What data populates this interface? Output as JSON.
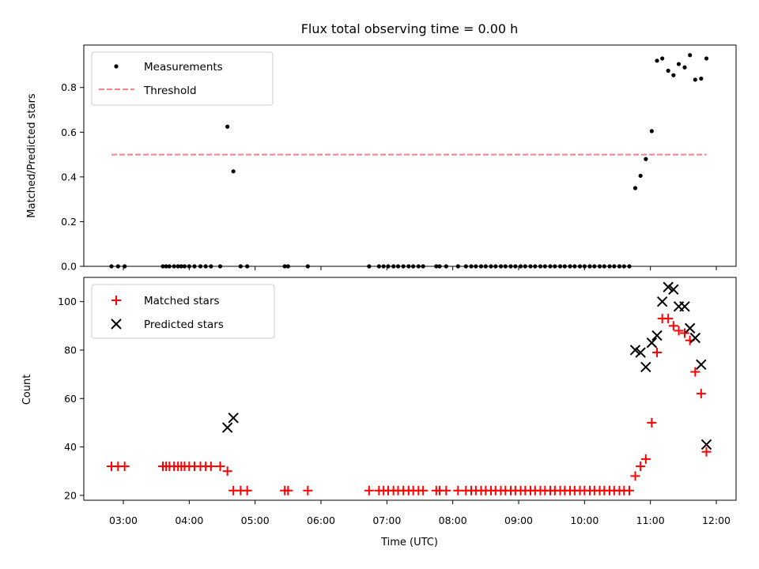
{
  "chart_data": [
    {
      "type": "scatter",
      "title": "Flux total observing time = 0.00 h",
      "xlabel": "",
      "ylabel": "Matched/Predicted stars",
      "xlim": [
        2.4,
        12.3
      ],
      "ylim": [
        0.0,
        0.99
      ],
      "yticks": [
        0.0,
        0.2,
        0.4,
        0.6,
        0.8
      ],
      "ytick_labels": [
        "0.0",
        "0.2",
        "0.4",
        "0.6",
        "0.8"
      ],
      "legend_position": "top-left",
      "series": [
        {
          "name": "Measurements",
          "kind": "points",
          "color": "#000000",
          "x": [
            2.82,
            2.92,
            3.02,
            3.6,
            3.65,
            3.7,
            3.77,
            3.83,
            3.88,
            3.93,
            4.0,
            4.08,
            4.17,
            4.25,
            4.33,
            4.47,
            4.58,
            4.67,
            4.78,
            4.88,
            5.45,
            5.5,
            5.8,
            6.73,
            6.88,
            6.95,
            7.02,
            7.1,
            7.17,
            7.25,
            7.33,
            7.4,
            7.48,
            7.55,
            7.75,
            7.8,
            7.9,
            8.08,
            8.2,
            8.28,
            8.35,
            8.43,
            8.5,
            8.58,
            8.65,
            8.73,
            8.8,
            8.88,
            8.95,
            9.03,
            9.1,
            9.18,
            9.25,
            9.33,
            9.4,
            9.48,
            9.55,
            9.63,
            9.7,
            9.78,
            9.85,
            9.93,
            10.0,
            10.08,
            10.15,
            10.23,
            10.3,
            10.38,
            10.45,
            10.53,
            10.6,
            10.68,
            10.77,
            10.85,
            10.93,
            11.02,
            11.1,
            11.18,
            11.27,
            11.35,
            11.43,
            11.52,
            11.6,
            11.68,
            11.77,
            11.85
          ],
          "y": [
            0,
            0,
            0,
            0,
            0,
            0,
            0,
            0,
            0,
            0,
            0,
            0,
            0,
            0,
            0,
            0,
            0.625,
            0.425,
            0,
            0,
            0,
            0,
            0,
            0,
            0,
            0,
            0,
            0,
            0,
            0,
            0,
            0,
            0,
            0,
            0,
            0,
            0,
            0,
            0,
            0,
            0,
            0,
            0,
            0,
            0,
            0,
            0,
            0,
            0,
            0,
            0,
            0,
            0,
            0,
            0,
            0,
            0,
            0,
            0,
            0,
            0,
            0,
            0,
            0,
            0,
            0,
            0,
            0,
            0,
            0,
            0,
            0,
            0.35,
            0.405,
            0.48,
            0.605,
            0.92,
            0.93,
            0.875,
            0.855,
            0.905,
            0.89,
            0.945,
            0.835,
            0.84,
            0.93
          ]
        },
        {
          "name": "Threshold",
          "kind": "dashed-line",
          "color": "#ff7f7f",
          "x": [
            2.82,
            11.85
          ],
          "y": [
            0.5,
            0.5
          ]
        }
      ]
    },
    {
      "type": "scatter",
      "title": "",
      "xlabel": "Time (UTC)",
      "ylabel": "Count",
      "xlim": [
        2.4,
        12.3
      ],
      "ylim": [
        18,
        110
      ],
      "yticks": [
        20,
        40,
        60,
        80,
        100
      ],
      "ytick_labels": [
        "20",
        "40",
        "60",
        "80",
        "100"
      ],
      "xticks": [
        3,
        4,
        5,
        6,
        7,
        8,
        9,
        10,
        11,
        12
      ],
      "xtick_labels": [
        "03:00",
        "04:00",
        "05:00",
        "06:00",
        "07:00",
        "08:00",
        "09:00",
        "10:00",
        "11:00",
        "12:00"
      ],
      "legend_position": "top-left",
      "series": [
        {
          "name": "Matched stars",
          "marker": "plus",
          "color": "#ff0000",
          "x": [
            2.82,
            2.92,
            3.02,
            3.6,
            3.65,
            3.7,
            3.77,
            3.83,
            3.88,
            3.93,
            4.0,
            4.08,
            4.17,
            4.25,
            4.33,
            4.47,
            4.58,
            4.67,
            4.78,
            4.88,
            5.45,
            5.5,
            5.8,
            6.73,
            6.88,
            6.95,
            7.02,
            7.1,
            7.17,
            7.25,
            7.33,
            7.4,
            7.48,
            7.55,
            7.75,
            7.8,
            7.9,
            8.08,
            8.2,
            8.28,
            8.35,
            8.43,
            8.5,
            8.58,
            8.65,
            8.73,
            8.8,
            8.88,
            8.95,
            9.03,
            9.1,
            9.18,
            9.25,
            9.33,
            9.4,
            9.48,
            9.55,
            9.63,
            9.7,
            9.78,
            9.85,
            9.93,
            10.0,
            10.08,
            10.15,
            10.23,
            10.3,
            10.38,
            10.45,
            10.53,
            10.6,
            10.68,
            10.77,
            10.85,
            10.93,
            11.02,
            11.1,
            11.18,
            11.27,
            11.35,
            11.43,
            11.52,
            11.6,
            11.68,
            11.77,
            11.85
          ],
          "y": [
            32,
            32,
            32,
            32,
            32,
            32,
            32,
            32,
            32,
            32,
            32,
            32,
            32,
            32,
            32,
            32,
            30,
            22,
            22,
            22,
            22,
            22,
            22,
            22,
            22,
            22,
            22,
            22,
            22,
            22,
            22,
            22,
            22,
            22,
            22,
            22,
            22,
            22,
            22,
            22,
            22,
            22,
            22,
            22,
            22,
            22,
            22,
            22,
            22,
            22,
            22,
            22,
            22,
            22,
            22,
            22,
            22,
            22,
            22,
            22,
            22,
            22,
            22,
            22,
            22,
            22,
            22,
            22,
            22,
            22,
            22,
            22,
            28,
            32,
            35,
            50,
            79,
            93,
            93,
            90,
            88,
            87,
            84,
            71,
            62,
            38
          ]
        },
        {
          "name": "Predicted stars",
          "marker": "x",
          "color": "#000000",
          "x": [
            4.58,
            4.67,
            10.77,
            10.85,
            10.93,
            11.02,
            11.1,
            11.18,
            11.27,
            11.35,
            11.43,
            11.52,
            11.6,
            11.68,
            11.77,
            11.85
          ],
          "y": [
            48,
            52,
            80,
            79,
            73,
            83,
            86,
            100,
            106,
            105,
            98,
            98,
            89,
            85,
            74,
            41
          ]
        }
      ]
    }
  ]
}
